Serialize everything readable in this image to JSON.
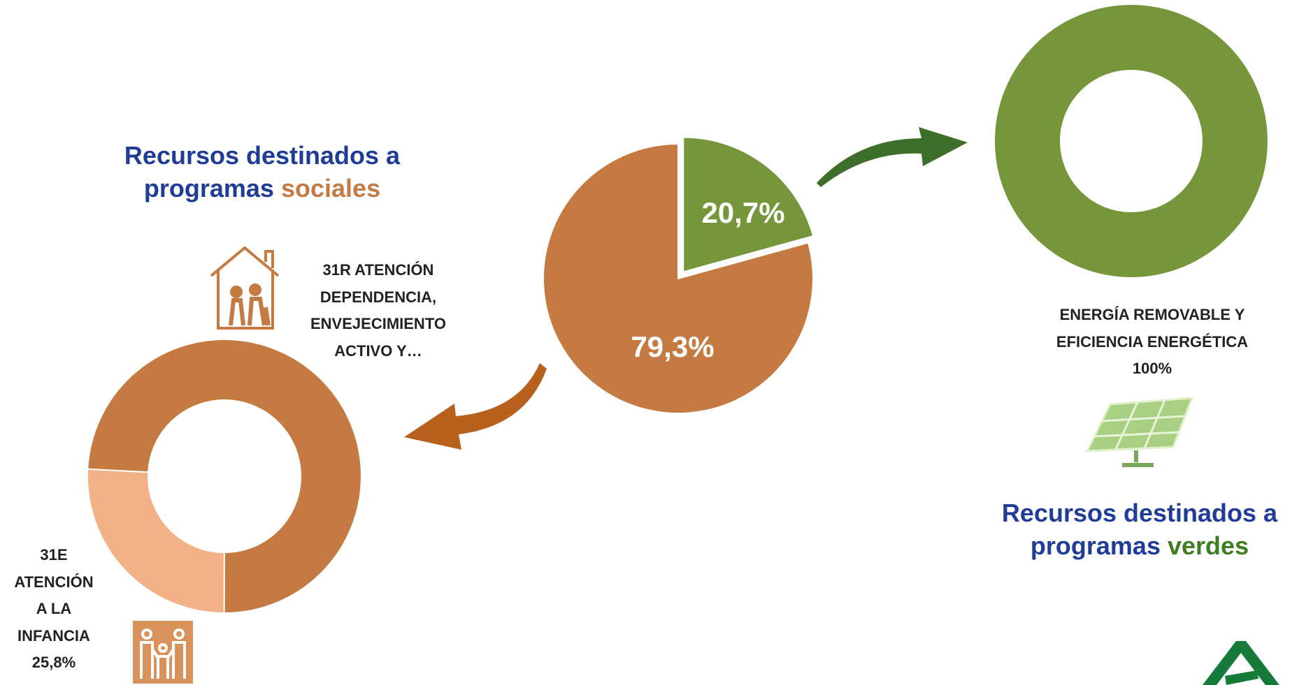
{
  "chart_data": [
    {
      "type": "pie",
      "values": [
        20.7,
        79.3
      ],
      "value_labels": [
        "20,7%",
        "79,3%"
      ],
      "colors": [
        "#76963b",
        "#c47a40"
      ]
    },
    {
      "type": "donut",
      "title": "Recursos destinados a programas",
      "title_highlight": "sociales",
      "title_highlight_color": "#c47a40",
      "categories": [
        "31R ATENCIÓN DEPENDENCIA, ENVEJECIMIENTO ACTIVO Y…",
        "31E ATENCIÓN A LA INFANCIA"
      ],
      "values": [
        74.2,
        25.8
      ],
      "value_labels": [
        null,
        "25,8%"
      ],
      "colors": [
        "#c47a40",
        "#f2b186"
      ]
    },
    {
      "type": "donut",
      "title": "Recursos destinados a programas",
      "title_highlight": "verdes",
      "title_highlight_color": "#3f7d20",
      "categories": [
        "ENERGÍA REMOVABLE Y EFICIENCIA ENERGÉTICA"
      ],
      "values": [
        100
      ],
      "value_labels": [
        "100%"
      ],
      "colors": [
        "#76963b"
      ]
    }
  ]
}
